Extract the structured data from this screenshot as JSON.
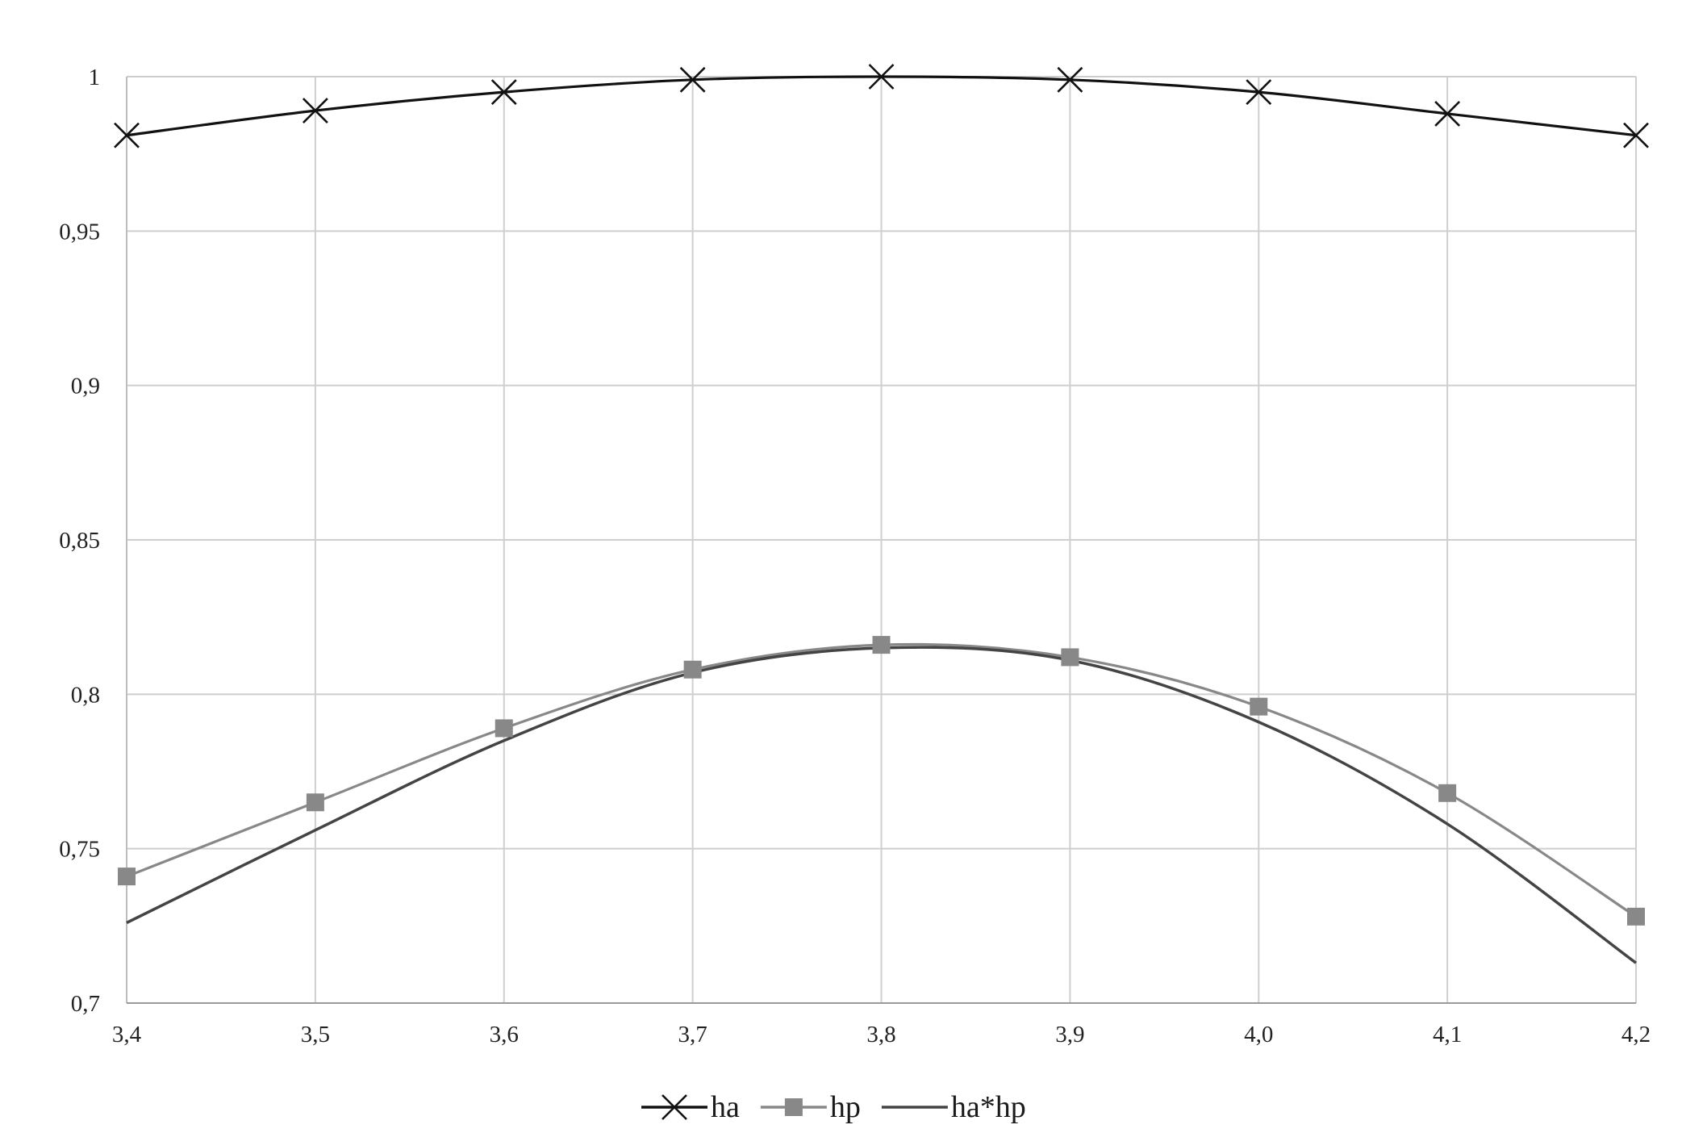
{
  "chart_data": {
    "type": "line",
    "x": [
      "3,4",
      "3,5",
      "3,6",
      "3,7",
      "3,8",
      "3,9",
      "4,0",
      "4,1",
      "4,2"
    ],
    "x_values": [
      3.4,
      3.5,
      3.6,
      3.7,
      3.8,
      3.9,
      4.0,
      4.1,
      4.2
    ],
    "series": [
      {
        "name": "ha",
        "values": [
          0.981,
          0.989,
          0.995,
          0.999,
          1.0,
          0.999,
          0.995,
          0.988,
          0.981
        ],
        "color": "#111111",
        "marker": "x"
      },
      {
        "name": "hp",
        "values": [
          0.741,
          0.765,
          0.789,
          0.808,
          0.816,
          0.812,
          0.796,
          0.768,
          0.728
        ],
        "color": "#888888",
        "marker": "square"
      },
      {
        "name": "ha*hp",
        "values": [
          0.726,
          0.756,
          0.785,
          0.807,
          0.815,
          0.811,
          0.791,
          0.758,
          0.713
        ],
        "color": "#444444",
        "marker": "none"
      }
    ],
    "y_ticks": [
      0.7,
      0.75,
      0.8,
      0.85,
      0.9,
      0.95,
      1.0
    ],
    "y_tick_labels": [
      "0,7",
      "0,75",
      "0,8",
      "0,85",
      "0,9",
      "0,95",
      "1"
    ],
    "ylim": [
      0.7,
      1.0
    ],
    "xlim": [
      3.4,
      4.2
    ],
    "grid": true,
    "legend_position": "bottom-center"
  }
}
